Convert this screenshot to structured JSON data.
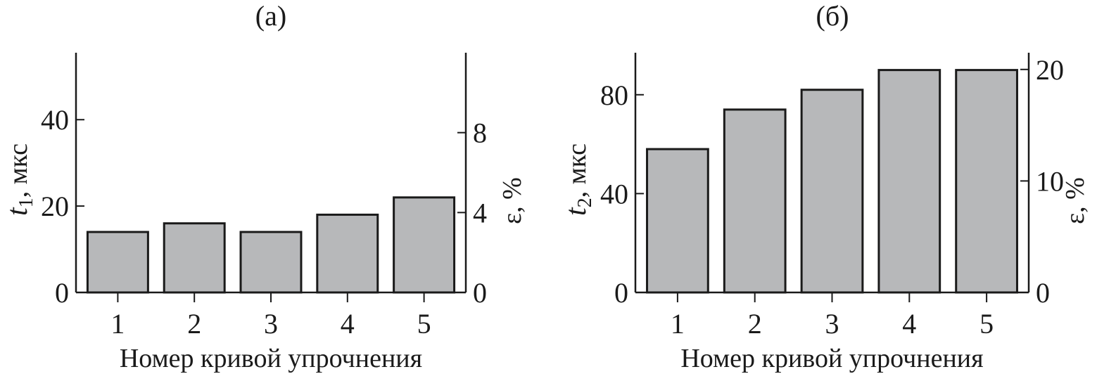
{
  "chart_data": [
    {
      "type": "bar",
      "title": "(a)",
      "xlabel": "Номер кривой упрочнения",
      "ylabel": {
        "symbol": "t",
        "subscript": "1",
        "unit": ", мкс"
      },
      "y2label": "ε, %",
      "categories": [
        "1",
        "2",
        "3",
        "4",
        "5"
      ],
      "values": [
        14,
        16,
        14,
        18,
        22
      ],
      "ylim": [
        0,
        55.5
      ],
      "yticks": [
        "0",
        "20",
        "40"
      ],
      "y2lim": [
        0,
        12
      ],
      "y2ticks": [
        "0",
        "4",
        "8"
      ],
      "grid": false,
      "bar_color": "#b7b8ba"
    },
    {
      "type": "bar",
      "title": "(б)",
      "xlabel": "Номер кривой упрочнения",
      "ylabel": {
        "symbol": "t",
        "subscript": "2",
        "unit": ", мкс"
      },
      "y2label": "ε, %",
      "categories": [
        "1",
        "2",
        "3",
        "4",
        "5"
      ],
      "values": [
        58,
        74,
        82,
        90,
        90
      ],
      "ylim": [
        0,
        97
      ],
      "yticks": [
        "0",
        "40",
        "80"
      ],
      "y2lim": [
        0,
        21.5
      ],
      "y2ticks": [
        "0",
        "10",
        "20"
      ],
      "grid": false,
      "bar_color": "#b7b8ba"
    }
  ]
}
